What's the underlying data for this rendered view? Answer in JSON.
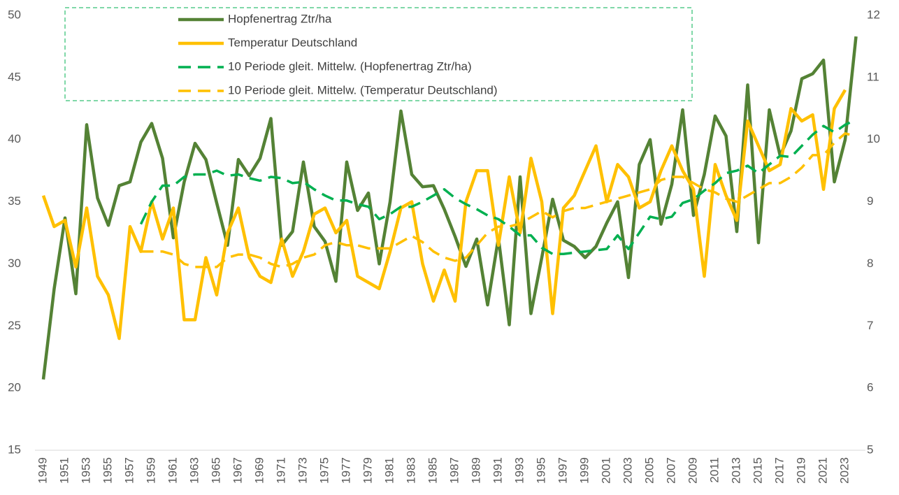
{
  "chart_data": {
    "type": "line",
    "categories": [
      "1949",
      null,
      "1951",
      null,
      "1953",
      null,
      "1955",
      null,
      "1957",
      null,
      "1959",
      null,
      "1961",
      null,
      "1963",
      null,
      "1965",
      null,
      "1967",
      null,
      "1969",
      null,
      "1971",
      null,
      "1973",
      null,
      "1975",
      null,
      "1977",
      null,
      "1979",
      null,
      "1981",
      null,
      "1983",
      null,
      "1985",
      null,
      "1987",
      null,
      "1989",
      null,
      "1991",
      null,
      "1993",
      null,
      "1995",
      null,
      "1997",
      null,
      "1999",
      null,
      "2001",
      null,
      "2003",
      null,
      "2005",
      null,
      "2007",
      null,
      "2009",
      null,
      "2011",
      null,
      "2013",
      null,
      "2015",
      null,
      "2017",
      null,
      "2019",
      null,
      "2021",
      null,
      "2023",
      null
    ],
    "series": [
      {
        "name": "Hopfenertrag Ztr/ha",
        "color": "#548235",
        "dash": false,
        "axis": "y",
        "values": [
          20.7,
          28,
          33.7,
          27.6,
          41.2,
          35.3,
          33.1,
          36.3,
          36.6,
          39.8,
          41.3,
          38.5,
          32.1,
          36.6,
          39.7,
          38.4,
          34.9,
          31.5,
          38.4,
          37.1,
          38.5,
          41.7,
          31.5,
          32.6,
          38.2,
          33.0,
          31.8,
          28.6,
          38.2,
          34.3,
          35.7,
          30.0,
          35.0,
          42.3,
          37.2,
          36.2,
          36.3,
          34.4,
          32.2,
          29.8,
          32.0,
          26.7,
          32.1,
          25.1,
          37.0,
          26.0,
          30.5,
          35.2,
          31.9,
          31.4,
          30.5,
          31.4,
          33.3,
          35.0,
          28.9,
          38.0,
          40.0,
          33.2,
          36.4,
          42.4,
          33.9,
          37.2,
          41.9,
          40.3,
          32.6,
          44.4,
          31.7,
          42.4,
          38.7,
          40.7,
          44.9,
          45.3,
          46.4,
          36.6,
          40.0,
          48.3
        ]
      },
      {
        "name": "Temperatur Deutschland",
        "color": "#ffc000",
        "dash": false,
        "axis": "y2",
        "values": [
          9.1,
          8.6,
          8.7,
          7.95,
          8.9,
          7.8,
          7.5,
          6.8,
          8.6,
          8.2,
          9.0,
          8.4,
          8.9,
          7.1,
          7.1,
          8.1,
          7.5,
          8.5,
          8.9,
          8.1,
          7.8,
          7.7,
          8.4,
          7.8,
          8.2,
          8.8,
          8.9,
          8.5,
          8.7,
          7.8,
          7.7,
          7.6,
          8.2,
          8.9,
          9.0,
          8.0,
          7.4,
          7.9,
          7.4,
          9.0,
          9.5,
          9.5,
          8.3,
          9.4,
          8.5,
          9.7,
          9.0,
          7.2,
          8.9,
          9.1,
          9.5,
          9.9,
          9.0,
          9.6,
          9.4,
          8.9,
          9.0,
          9.5,
          9.9,
          9.5,
          9.2,
          7.8,
          9.6,
          9.1,
          8.7,
          10.3,
          9.9,
          9.5,
          9.6,
          10.5,
          10.3,
          10.4,
          9.2,
          10.5,
          10.8,
          null
        ]
      },
      {
        "name": "10 Periode gleit. Mittelw. (Hopfenertrag Ztr/ha)",
        "color": "#00b050",
        "dash": true,
        "axis": "y",
        "values": [
          null,
          null,
          null,
          null,
          null,
          null,
          null,
          null,
          null,
          33.2,
          35.0,
          36.3,
          36.3,
          37.0,
          37.2,
          37.2,
          37.5,
          37.1,
          37.2,
          36.9,
          36.7,
          37.0,
          36.9,
          36.5,
          36.6,
          36.0,
          35.5,
          35.1,
          35.1,
          34.8,
          34.6,
          33.6,
          34.0,
          34.6,
          34.6,
          35.0,
          35.5,
          36.0,
          35.3,
          34.8,
          34.4,
          33.9,
          33.6,
          33.0,
          32.3,
          32.3,
          31.3,
          30.8,
          30.8,
          30.9,
          31.0,
          31.1,
          31.2,
          32.3,
          31.2,
          32.5,
          33.8,
          33.6,
          33.8,
          34.9,
          35.2,
          35.9,
          36.5,
          37.3,
          37.5,
          37.9,
          37.3,
          38.0,
          38.7,
          38.6,
          39.5,
          40.4,
          41.1,
          40.6,
          41.2,
          41.6
        ]
      },
      {
        "name": "10 Periode gleit. Mittelw. (Temperatur Deutschland)",
        "color": "#ffc000",
        "dash": true,
        "axis": "y2",
        "values": [
          null,
          null,
          null,
          null,
          null,
          null,
          null,
          null,
          null,
          8.2,
          8.2,
          8.2,
          8.15,
          8.0,
          7.95,
          7.95,
          7.95,
          8.1,
          8.15,
          8.15,
          8.1,
          8.0,
          7.95,
          8.0,
          8.1,
          8.15,
          8.3,
          8.35,
          8.3,
          8.3,
          8.25,
          8.25,
          8.25,
          8.35,
          8.45,
          8.35,
          8.2,
          8.1,
          8.05,
          8.1,
          8.3,
          8.5,
          8.6,
          8.6,
          8.65,
          8.75,
          8.85,
          8.75,
          8.85,
          8.9,
          8.9,
          8.95,
          9.0,
          9.05,
          9.1,
          9.15,
          9.2,
          9.35,
          9.4,
          9.4,
          9.3,
          9.2,
          9.15,
          9.05,
          9.0,
          9.1,
          9.2,
          9.3,
          9.3,
          9.4,
          9.55,
          9.75,
          9.75,
          9.95,
          10.1,
          10.05
        ]
      }
    ],
    "ylim": [
      15,
      50
    ],
    "yticks": [
      15,
      20,
      25,
      30,
      35,
      40,
      45,
      50
    ],
    "y2lim": [
      5,
      12
    ],
    "y2ticks": [
      5,
      6,
      7,
      8,
      9,
      10,
      11,
      12
    ],
    "grid": false,
    "legend": "top"
  }
}
